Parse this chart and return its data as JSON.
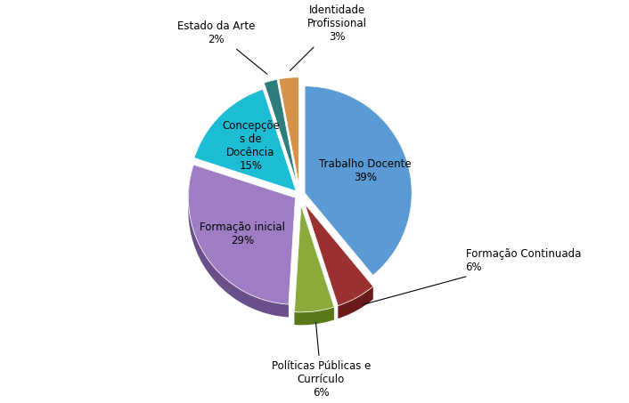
{
  "sizes": [
    39,
    6,
    6,
    29,
    15,
    2,
    3
  ],
  "colors_top": [
    "#5B9BD5",
    "#9B3030",
    "#8AAA3C",
    "#9E7DC4",
    "#1BBCD4",
    "#2E7D7D",
    "#D4924A"
  ],
  "colors_side": [
    "#3A6FA0",
    "#6B1A1A",
    "#5A7A1A",
    "#6A508A",
    "#0A8A9A",
    "#1A5050",
    "#A06820"
  ],
  "raw_labels": [
    "Trabalho Docente",
    "Formação Continuada",
    "Políticas Públicas e\nCurrículo",
    "Formação inicial",
    "Concepçõe\ns de\nDocência",
    "Estado da Arte",
    "Identidade\nProfissional"
  ],
  "pct_labels": [
    "39%",
    "6%",
    "6%",
    "29%",
    "15%",
    "2%",
    "3%"
  ],
  "startangle": 90,
  "background_color": "#FFFFFF",
  "explode": [
    0.05,
    0.1,
    0.1,
    0.05,
    0.05,
    0.1,
    0.1
  ]
}
